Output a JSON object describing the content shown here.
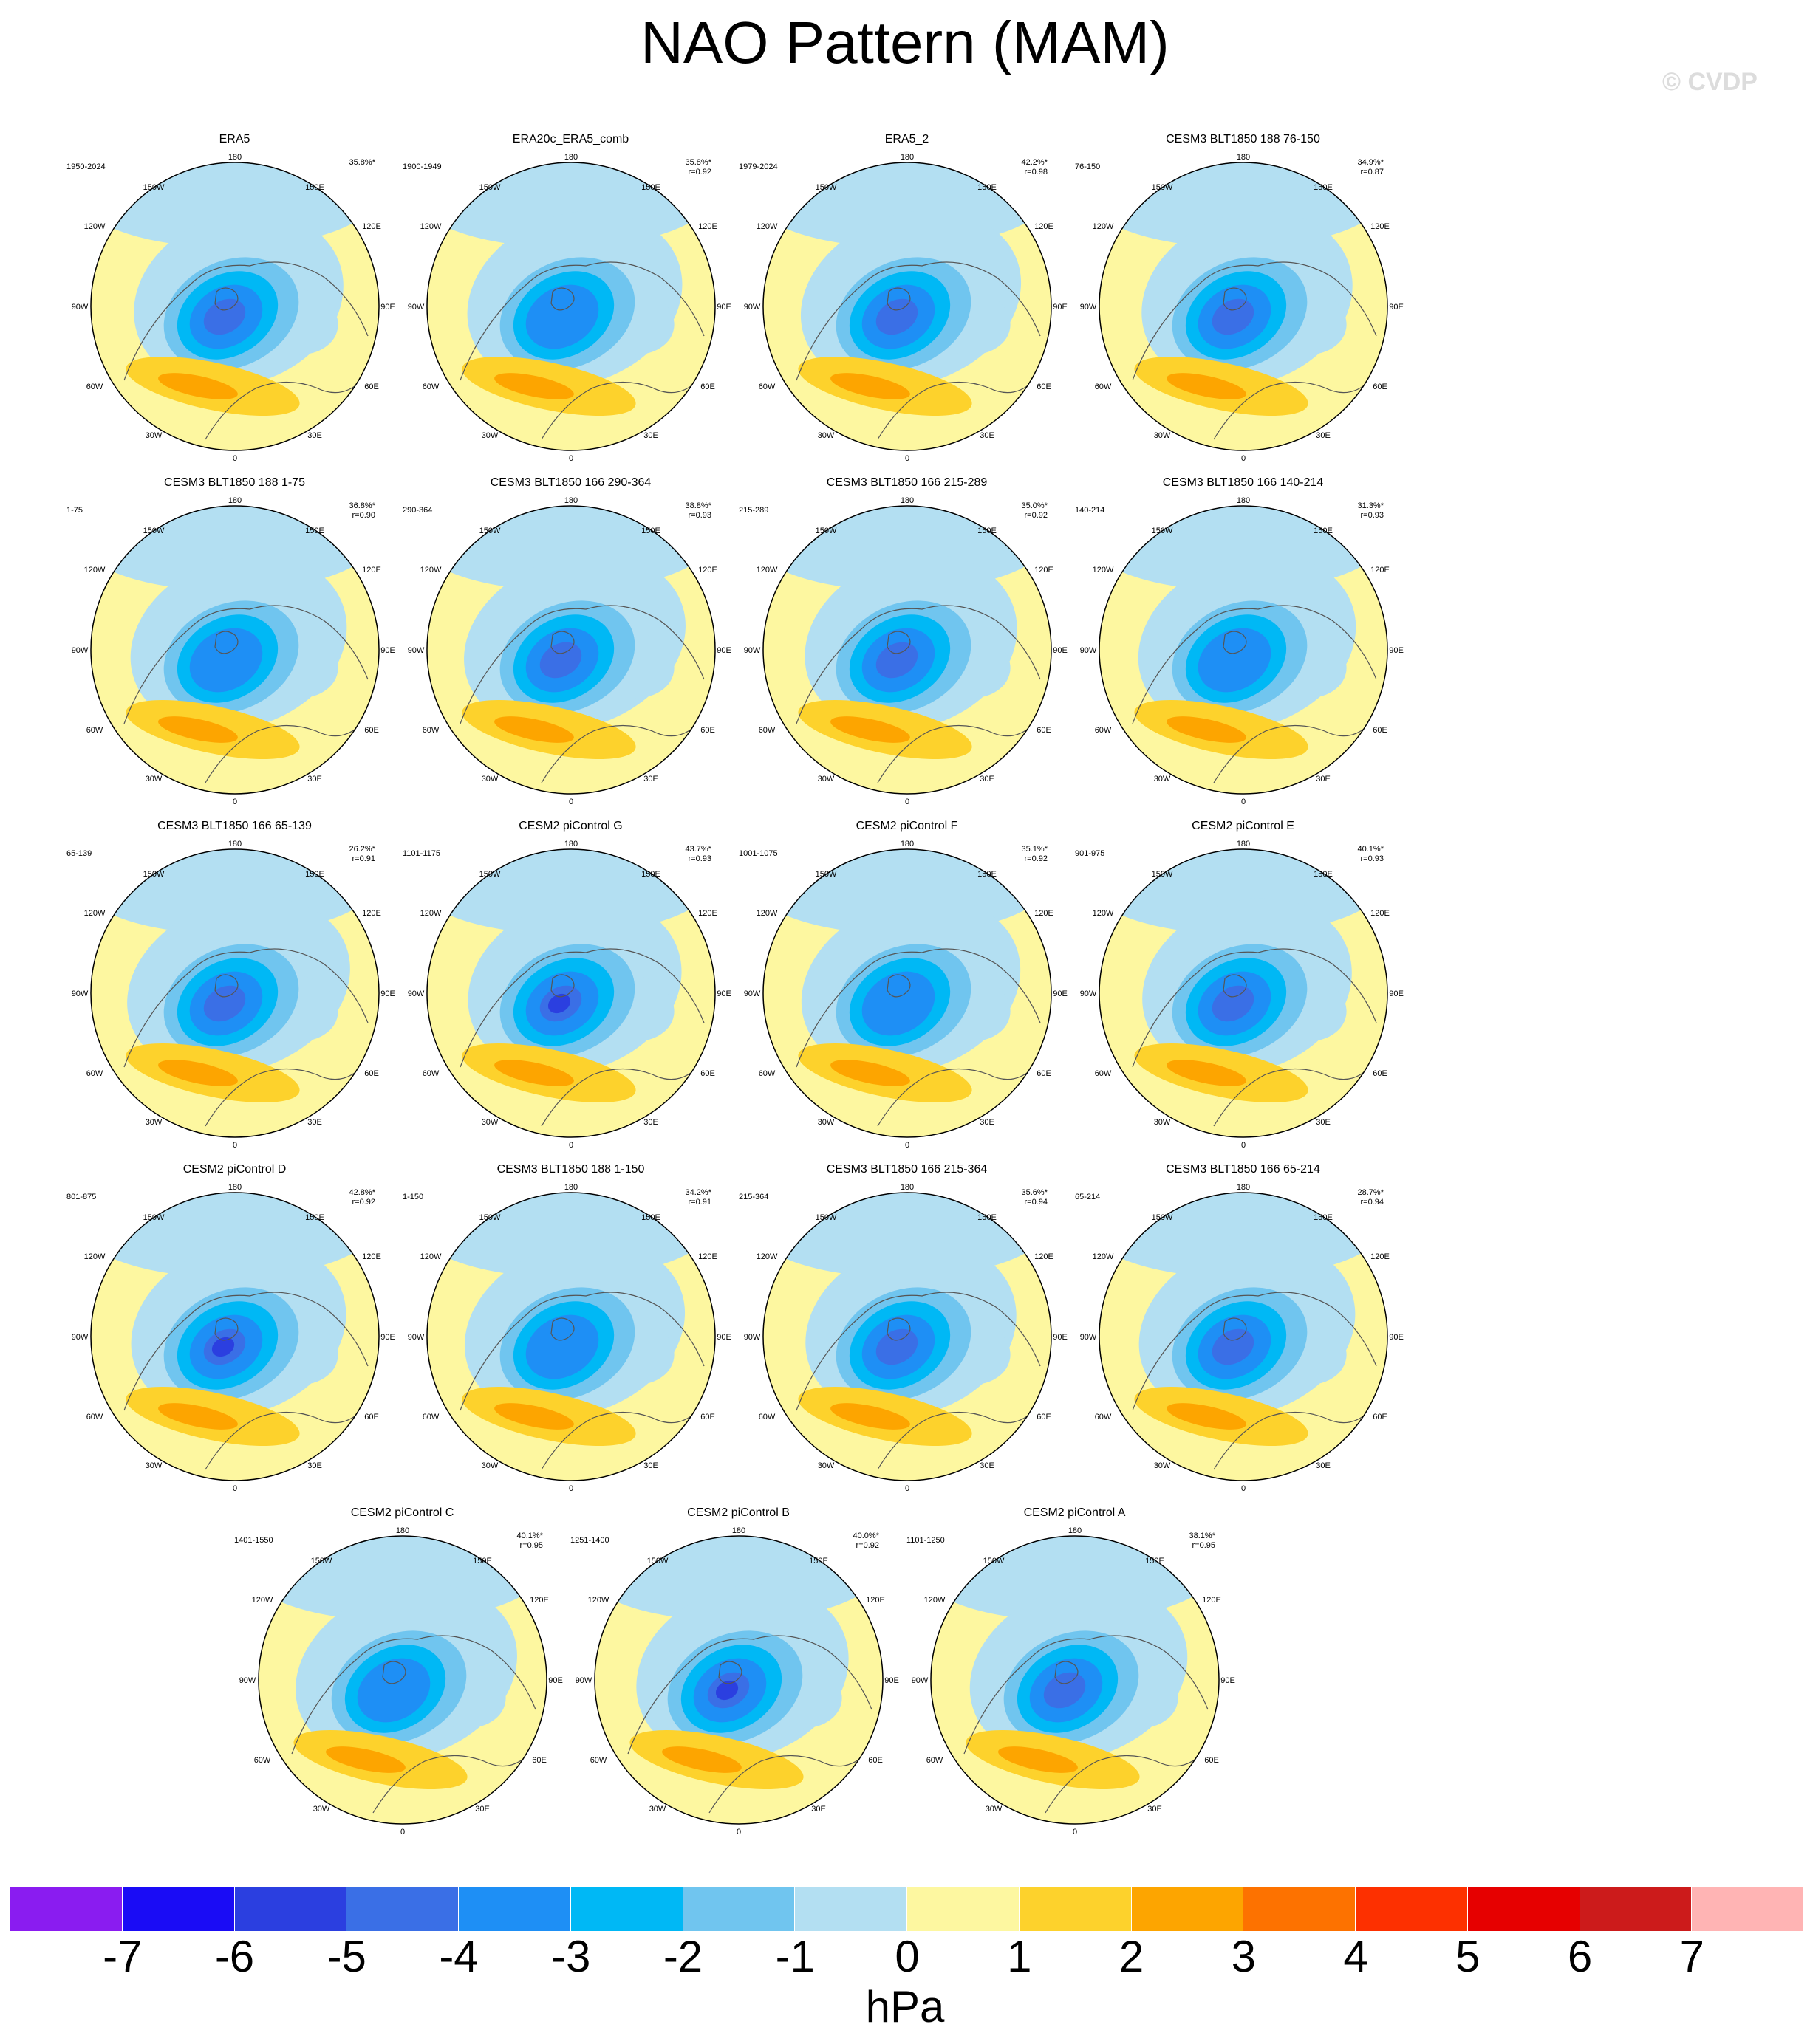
{
  "title": "NAO Pattern (MAM)",
  "watermark": "© CVDP",
  "lon_labels": {
    "top": "180",
    "bottom": "0",
    "left": [
      "150W",
      "120W",
      "90W",
      "60W",
      "30W"
    ],
    "right": [
      "150E",
      "120E",
      "90E",
      "60E",
      "30E"
    ]
  },
  "panels": [
    {
      "name": "ERA5",
      "years": "1950-2024",
      "pct": "35.8%*",
      "r": ""
    },
    {
      "name": "ERA20c_ERA5_comb",
      "years": "1900-1949",
      "pct": "35.8%*",
      "r": "r=0.92"
    },
    {
      "name": "ERA5_2",
      "years": "1979-2024",
      "pct": "42.2%*",
      "r": "r=0.98"
    },
    {
      "name": "CESM3 BLT1850 188 76-150",
      "years": "76-150",
      "pct": "34.9%*",
      "r": "r=0.87"
    },
    {
      "name": "CESM3 BLT1850 188 1-75",
      "years": "1-75",
      "pct": "36.8%*",
      "r": "r=0.90"
    },
    {
      "name": "CESM3 BLT1850 166 290-364",
      "years": "290-364",
      "pct": "38.8%*",
      "r": "r=0.93"
    },
    {
      "name": "CESM3 BLT1850 166 215-289",
      "years": "215-289",
      "pct": "35.0%*",
      "r": "r=0.92"
    },
    {
      "name": "CESM3 BLT1850 166 140-214",
      "years": "140-214",
      "pct": "31.3%*",
      "r": "r=0.93"
    },
    {
      "name": "CESM3 BLT1850 166 65-139",
      "years": "65-139",
      "pct": "26.2%*",
      "r": "r=0.91"
    },
    {
      "name": "CESM2 piControl G",
      "years": "1101-1175",
      "pct": "43.7%*",
      "r": "r=0.93"
    },
    {
      "name": "CESM2 piControl F",
      "years": "1001-1075",
      "pct": "35.1%*",
      "r": "r=0.92"
    },
    {
      "name": "CESM2 piControl E",
      "years": "901-975",
      "pct": "40.1%*",
      "r": "r=0.93"
    },
    {
      "name": "CESM2 piControl D",
      "years": "801-875",
      "pct": "42.8%*",
      "r": "r=0.92"
    },
    {
      "name": "CESM3 BLT1850 188 1-150",
      "years": "1-150",
      "pct": "34.2%*",
      "r": "r=0.91"
    },
    {
      "name": "CESM3 BLT1850 166 215-364",
      "years": "215-364",
      "pct": "35.6%*",
      "r": "r=0.94"
    },
    {
      "name": "CESM3 BLT1850 166 65-214",
      "years": "65-214",
      "pct": "28.7%*",
      "r": "r=0.94"
    },
    {
      "name": "CESM2 piControl C",
      "years": "1401-1550",
      "pct": "40.1%*",
      "r": "r=0.95"
    },
    {
      "name": "CESM2 piControl B",
      "years": "1251-1400",
      "pct": "40.0%*",
      "r": "r=0.92"
    },
    {
      "name": "CESM2 piControl A",
      "years": "1101-1250",
      "pct": "38.1%*",
      "r": "r=0.95"
    }
  ],
  "colorbar": {
    "colors": [
      "#8a1cf0",
      "#1a0cf5",
      "#2b3fe0",
      "#3a6fe6",
      "#1e8ff5",
      "#00b8f5",
      "#70c5ef",
      "#b3dff2",
      "#fdf7a0",
      "#fdd22c",
      "#fda500",
      "#fd7200",
      "#fd3000",
      "#e60000",
      "#cc1b1b",
      "#ffb4b4"
    ],
    "ticks": [
      "-7",
      "-6",
      "-5",
      "-4",
      "-3",
      "-2",
      "-1",
      "0",
      "1",
      "2",
      "3",
      "4",
      "5",
      "6",
      "7"
    ],
    "unit": "hPa"
  }
}
